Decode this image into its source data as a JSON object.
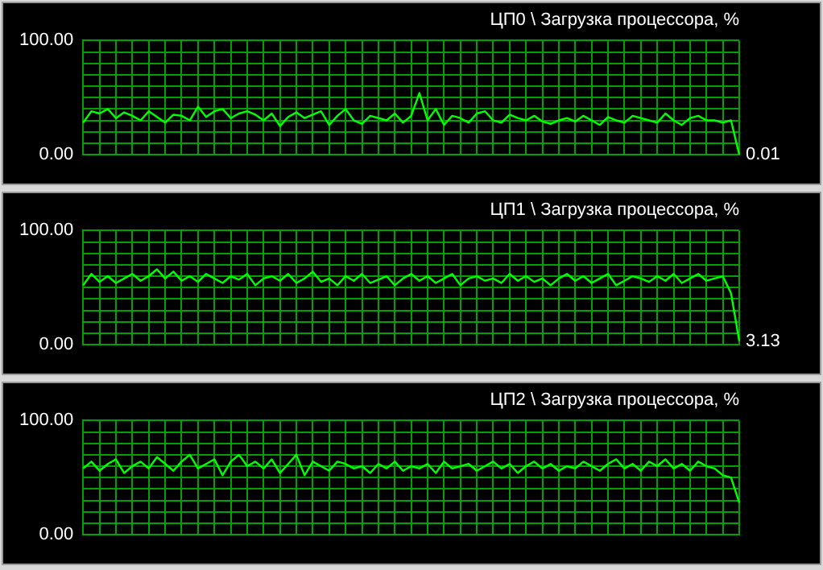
{
  "chart_data": [
    {
      "type": "line",
      "title": "ЦП0 \\ Загрузка процессора, %",
      "categories": [
        null,
        null,
        null,
        null,
        null,
        null,
        null,
        null,
        null,
        null,
        null,
        null,
        null,
        null,
        null,
        null,
        null,
        null,
        null,
        null,
        null,
        null,
        null,
        null,
        null,
        null,
        null,
        null,
        null,
        null,
        null,
        null,
        null,
        null,
        null,
        null,
        null,
        null,
        null,
        null,
        null,
        null,
        null,
        null,
        null,
        null,
        null,
        null,
        null,
        null,
        null,
        null,
        null,
        null,
        null,
        null,
        null,
        null,
        null,
        null,
        null,
        null,
        null,
        null,
        null,
        null,
        null,
        null,
        null,
        null,
        null,
        null,
        null,
        null,
        null,
        null,
        null,
        null,
        null,
        null,
        null
      ],
      "values": [
        28,
        38,
        36,
        40,
        32,
        37,
        34,
        30,
        38,
        33,
        28,
        35,
        34,
        30,
        42,
        33,
        38,
        40,
        32,
        36,
        38,
        35,
        30,
        36,
        25,
        33,
        37,
        32,
        35,
        38,
        26,
        34,
        40,
        30,
        27,
        34,
        32,
        30,
        36,
        28,
        34,
        54,
        30,
        40,
        26,
        34,
        32,
        28,
        36,
        38,
        30,
        28,
        35,
        32,
        30,
        34,
        29,
        27,
        30,
        32,
        29,
        34,
        30,
        26,
        33,
        30,
        28,
        34,
        32,
        30,
        28,
        36,
        30,
        26,
        32,
        34,
        30,
        30,
        28,
        30,
        0.01
      ],
      "value_labels": [
        null,
        null,
        null,
        null,
        null,
        null,
        null,
        null,
        null,
        null,
        null,
        null,
        null,
        null,
        null,
        null,
        null,
        null,
        null,
        null,
        null,
        null,
        null,
        null,
        null,
        null,
        null,
        null,
        null,
        null,
        null,
        null,
        null,
        null,
        null,
        null,
        null,
        null,
        null,
        null,
        null,
        null,
        null,
        null,
        null,
        null,
        null,
        null,
        null,
        null,
        null,
        null,
        null,
        null,
        null,
        null,
        null,
        null,
        null,
        null,
        null,
        null,
        null,
        null,
        null,
        null,
        null,
        null,
        null,
        null,
        null,
        null,
        null,
        null,
        null,
        null,
        null,
        null,
        null,
        null,
        "0.01"
      ],
      "color": "#00ff00",
      "ylim": [
        0,
        100
      ],
      "yticks": [
        {
          "value": 0,
          "label": "0.00"
        },
        {
          "value": 10,
          "label": null
        },
        {
          "value": 20,
          "label": null
        },
        {
          "value": 30,
          "label": null
        },
        {
          "value": 40,
          "label": null
        },
        {
          "value": 50,
          "label": null
        },
        {
          "value": 60,
          "label": null
        },
        {
          "value": 70,
          "label": null
        },
        {
          "value": 80,
          "label": null
        },
        {
          "value": 90,
          "label": null
        },
        {
          "value": 100,
          "label": "100.00"
        }
      ],
      "grid": true,
      "tick_labels": "y",
      "marker": "none",
      "legend": false
    },
    {
      "type": "line",
      "title": "ЦП1 \\ Загрузка процессора, %",
      "categories": [
        null,
        null,
        null,
        null,
        null,
        null,
        null,
        null,
        null,
        null,
        null,
        null,
        null,
        null,
        null,
        null,
        null,
        null,
        null,
        null,
        null,
        null,
        null,
        null,
        null,
        null,
        null,
        null,
        null,
        null,
        null,
        null,
        null,
        null,
        null,
        null,
        null,
        null,
        null,
        null,
        null,
        null,
        null,
        null,
        null,
        null,
        null,
        null,
        null,
        null,
        null,
        null,
        null,
        null,
        null,
        null,
        null,
        null,
        null,
        null,
        null,
        null,
        null,
        null,
        null,
        null,
        null,
        null,
        null,
        null,
        null,
        null,
        null,
        null,
        null,
        null,
        null,
        null,
        null,
        null,
        null
      ],
      "values": [
        52,
        62,
        55,
        60,
        54,
        58,
        62,
        56,
        60,
        66,
        58,
        64,
        56,
        60,
        55,
        62,
        58,
        54,
        60,
        57,
        62,
        52,
        58,
        60,
        56,
        62,
        54,
        58,
        64,
        55,
        58,
        52,
        60,
        56,
        62,
        54,
        57,
        60,
        52,
        58,
        62,
        56,
        60,
        54,
        58,
        62,
        52,
        58,
        60,
        56,
        58,
        54,
        62,
        56,
        60,
        55,
        58,
        52,
        58,
        62,
        56,
        60,
        54,
        58,
        62,
        52,
        56,
        60,
        58,
        55,
        60,
        56,
        62,
        54,
        58,
        62,
        56,
        58,
        60,
        45,
        3.13
      ],
      "value_labels": [
        null,
        null,
        null,
        null,
        null,
        null,
        null,
        null,
        null,
        null,
        null,
        null,
        null,
        null,
        null,
        null,
        null,
        null,
        null,
        null,
        null,
        null,
        null,
        null,
        null,
        null,
        null,
        null,
        null,
        null,
        null,
        null,
        null,
        null,
        null,
        null,
        null,
        null,
        null,
        null,
        null,
        null,
        null,
        null,
        null,
        null,
        null,
        null,
        null,
        null,
        null,
        null,
        null,
        null,
        null,
        null,
        null,
        null,
        null,
        null,
        null,
        null,
        null,
        null,
        null,
        null,
        null,
        null,
        null,
        null,
        null,
        null,
        null,
        null,
        null,
        null,
        null,
        null,
        null,
        null,
        "3.13"
      ],
      "color": "#00ff00",
      "ylim": [
        0,
        100
      ],
      "yticks": [
        {
          "value": 0,
          "label": "0.00"
        },
        {
          "value": 10,
          "label": null
        },
        {
          "value": 20,
          "label": null
        },
        {
          "value": 30,
          "label": null
        },
        {
          "value": 40,
          "label": null
        },
        {
          "value": 50,
          "label": null
        },
        {
          "value": 60,
          "label": null
        },
        {
          "value": 70,
          "label": null
        },
        {
          "value": 80,
          "label": null
        },
        {
          "value": 90,
          "label": null
        },
        {
          "value": 100,
          "label": "100.00"
        }
      ],
      "grid": true,
      "tick_labels": "y",
      "marker": "none",
      "legend": false
    },
    {
      "type": "line",
      "title": "ЦП2 \\ Загрузка процессора, %",
      "categories": [
        null,
        null,
        null,
        null,
        null,
        null,
        null,
        null,
        null,
        null,
        null,
        null,
        null,
        null,
        null,
        null,
        null,
        null,
        null,
        null,
        null,
        null,
        null,
        null,
        null,
        null,
        null,
        null,
        null,
        null,
        null,
        null,
        null,
        null,
        null,
        null,
        null,
        null,
        null,
        null,
        null,
        null,
        null,
        null,
        null,
        null,
        null,
        null,
        null,
        null,
        null,
        null,
        null,
        null,
        null,
        null,
        null,
        null,
        null,
        null,
        null,
        null,
        null,
        null,
        null,
        null,
        null,
        null,
        null,
        null,
        null,
        null,
        null,
        null,
        null,
        null,
        null,
        null,
        null,
        null,
        null
      ],
      "values": [
        58,
        64,
        56,
        62,
        66,
        54,
        60,
        64,
        58,
        68,
        62,
        56,
        64,
        70,
        58,
        62,
        66,
        52,
        64,
        70,
        60,
        64,
        58,
        66,
        54,
        62,
        70,
        52,
        64,
        60,
        56,
        64,
        62,
        58,
        60,
        54,
        62,
        58,
        64,
        56,
        60,
        58,
        62,
        54,
        64,
        58,
        60,
        62,
        56,
        60,
        64,
        58,
        62,
        54,
        60,
        64,
        58,
        62,
        56,
        60,
        58,
        64,
        60,
        56,
        62,
        66,
        58,
        62,
        56,
        64,
        60,
        66,
        58,
        62,
        56,
        64,
        60,
        58,
        52,
        50,
        28
      ],
      "color": "#00ff00",
      "ylim": [
        0,
        100
      ],
      "yticks": [
        {
          "value": 0,
          "label": "0.00"
        },
        {
          "value": 10,
          "label": null
        },
        {
          "value": 20,
          "label": null
        },
        {
          "value": 30,
          "label": null
        },
        {
          "value": 40,
          "label": null
        },
        {
          "value": 50,
          "label": null
        },
        {
          "value": 60,
          "label": null
        },
        {
          "value": 70,
          "label": null
        },
        {
          "value": 80,
          "label": null
        },
        {
          "value": 90,
          "label": null
        },
        {
          "value": 100,
          "label": "100.00"
        }
      ],
      "grid": true,
      "tick_labels": "y",
      "marker": "none",
      "legend": false
    }
  ]
}
